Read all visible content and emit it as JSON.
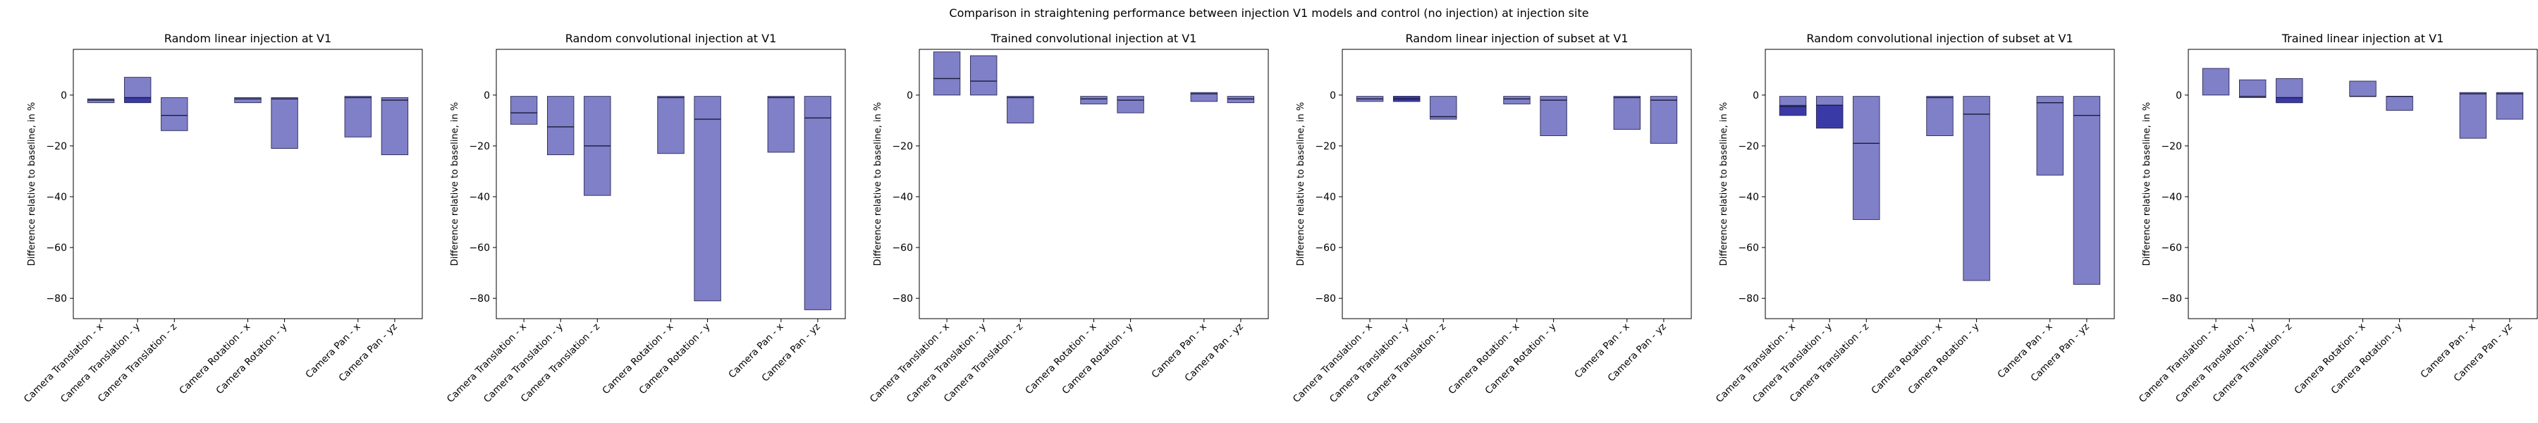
{
  "figure": {
    "suptitle": "Comparison in straightening performance between injection V1 models and control (no injection) at injection site"
  },
  "chart_data": [
    {
      "type": "bar",
      "title": "Random linear injection at V1",
      "ylabel": "Difference relative to baseline, in %",
      "ylim": [
        -88,
        18
      ],
      "yticks": [
        0,
        -20,
        -40,
        -60,
        -80
      ],
      "categories": [
        "Camera Translation - x",
        "Camera Translation - y",
        "Camera Translation - z",
        "Camera Rotation - x",
        "Camera Rotation - y",
        "Camera Pan - x",
        "Camera Pan - yz"
      ],
      "x": [
        0,
        1,
        2,
        4,
        5,
        7,
        8
      ],
      "bars": [
        {
          "category": "Camera Translation - x",
          "light": [
            -1.5,
            -3
          ],
          "dark": null,
          "median": -2
        },
        {
          "category": "Camera Translation - y",
          "light": [
            -1,
            7
          ],
          "dark": [
            -3,
            -1
          ],
          "median": -1
        },
        {
          "category": "Camera Translation - z",
          "light": [
            -14,
            -1
          ],
          "dark": null,
          "median": -8
        },
        {
          "category": "Camera Rotation - x",
          "light": [
            -1,
            -3
          ],
          "dark": null,
          "median": -1.5
        },
        {
          "category": "Camera Rotation - y",
          "light": [
            -21,
            -1
          ],
          "dark": null,
          "median": -1.5
        },
        {
          "category": "Camera Pan - x",
          "light": [
            -16.5,
            -0.5
          ],
          "dark": null,
          "median": -1
        },
        {
          "category": "Camera Pan - yz",
          "light": [
            -23.5,
            -1
          ],
          "dark": null,
          "median": -2
        }
      ]
    },
    {
      "type": "bar",
      "title": "Random convolutional injection at V1",
      "ylabel": "Difference relative to baseline, in %",
      "ylim": [
        -88,
        18
      ],
      "yticks": [
        0,
        -20,
        -40,
        -60,
        -80
      ],
      "categories": [
        "Camera Translation - x",
        "Camera Translation - y",
        "Camera Translation - z",
        "Camera Rotation - x",
        "Camera Rotation - y",
        "Camera Pan - x",
        "Camera Pan - yz"
      ],
      "x": [
        0,
        1,
        2,
        4,
        5,
        7,
        8
      ],
      "bars": [
        {
          "category": "Camera Translation - x",
          "light": [
            -11.5,
            -0.5
          ],
          "dark": null,
          "median": -7
        },
        {
          "category": "Camera Translation - y",
          "light": [
            -23.5,
            -0.5
          ],
          "dark": null,
          "median": -12.5
        },
        {
          "category": "Camera Translation - z",
          "light": [
            -39.5,
            -0.5
          ],
          "dark": null,
          "median": -20
        },
        {
          "category": "Camera Rotation - x",
          "light": [
            -23,
            -0.5
          ],
          "dark": null,
          "median": -1
        },
        {
          "category": "Camera Rotation - y",
          "light": [
            -81,
            -0.5
          ],
          "dark": null,
          "median": -9.5
        },
        {
          "category": "Camera Pan - x",
          "light": [
            -22.5,
            -0.5
          ],
          "dark": null,
          "median": -1
        },
        {
          "category": "Camera Pan - yz",
          "light": [
            -84.5,
            -0.5
          ],
          "dark": null,
          "median": -9
        }
      ]
    },
    {
      "type": "bar",
      "title": "Trained convolutional injection at V1",
      "ylabel": "Difference relative to baseline, in %",
      "ylim": [
        -88,
        18
      ],
      "yticks": [
        0,
        -20,
        -40,
        -60,
        -80
      ],
      "categories": [
        "Camera Translation - x",
        "Camera Translation - y",
        "Camera Translation - z",
        "Camera Rotation - x",
        "Camera Rotation - y",
        "Camera Pan - x",
        "Camera Pan - yz"
      ],
      "x": [
        0,
        1,
        2,
        4,
        5,
        7,
        8
      ],
      "bars": [
        {
          "category": "Camera Translation - x",
          "light": [
            0,
            17
          ],
          "dark": null,
          "median": 6.5
        },
        {
          "category": "Camera Translation - y",
          "light": [
            0,
            15.5
          ],
          "dark": null,
          "median": 5.5
        },
        {
          "category": "Camera Translation - z",
          "light": [
            -11,
            -0.5
          ],
          "dark": null,
          "median": -1
        },
        {
          "category": "Camera Rotation - x",
          "light": [
            -3.5,
            -0.5
          ],
          "dark": null,
          "median": -1.5
        },
        {
          "category": "Camera Rotation - y",
          "light": [
            -7,
            -0.5
          ],
          "dark": null,
          "median": -2
        },
        {
          "category": "Camera Pan - x",
          "light": [
            -2.5,
            1
          ],
          "dark": null,
          "median": 0.5
        },
        {
          "category": "Camera Pan - yz",
          "light": [
            -3,
            -0.5
          ],
          "dark": null,
          "median": -1.5
        }
      ]
    },
    {
      "type": "bar",
      "title": "Random linear injection of subset at V1",
      "ylabel": "Difference relative to baseline, in %",
      "ylim": [
        -88,
        18
      ],
      "yticks": [
        0,
        -20,
        -40,
        -60,
        -80
      ],
      "categories": [
        "Camera Translation - x",
        "Camera Translation - y",
        "Camera Translation - z",
        "Camera Rotation - x",
        "Camera Rotation - y",
        "Camera Pan - x",
        "Camera Pan - yz"
      ],
      "x": [
        0,
        1,
        2,
        4,
        5,
        7,
        8
      ],
      "bars": [
        {
          "category": "Camera Translation - x",
          "light": [
            -2.5,
            -0.5
          ],
          "dark": null,
          "median": -1.5
        },
        {
          "category": "Camera Translation - y",
          "light": [
            -2.5,
            -0.5
          ],
          "dark": [
            -2.5,
            -0.5
          ],
          "median": -1.5
        },
        {
          "category": "Camera Translation - z",
          "light": [
            -9.5,
            -0.5
          ],
          "dark": null,
          "median": -8.5
        },
        {
          "category": "Camera Rotation - x",
          "light": [
            -3.5,
            -0.5
          ],
          "dark": null,
          "median": -1.5
        },
        {
          "category": "Camera Rotation - y",
          "light": [
            -16,
            -0.5
          ],
          "dark": null,
          "median": -2
        },
        {
          "category": "Camera Pan - x",
          "light": [
            -13.5,
            -0.5
          ],
          "dark": null,
          "median": -1
        },
        {
          "category": "Camera Pan - yz",
          "light": [
            -19,
            -0.5
          ],
          "dark": null,
          "median": -2
        }
      ]
    },
    {
      "type": "bar",
      "title": "Random convolutional injection of subset at V1",
      "ylabel": "Difference relative to baseline, in %",
      "ylim": [
        -88,
        18
      ],
      "yticks": [
        0,
        -20,
        -40,
        -60,
        -80
      ],
      "categories": [
        "Camera Translation - x",
        "Camera Translation - y",
        "Camera Translation - z",
        "Camera Rotation - x",
        "Camera Rotation - y",
        "Camera Pan - x",
        "Camera Pan - yz"
      ],
      "x": [
        0,
        1,
        2,
        4,
        5,
        7,
        8
      ],
      "bars": [
        {
          "category": "Camera Translation - x",
          "light": [
            -8,
            -0.5
          ],
          "dark": [
            -8,
            -4
          ],
          "median": -4.5
        },
        {
          "category": "Camera Translation - y",
          "light": [
            -13,
            -0.5
          ],
          "dark": [
            -13,
            -4
          ],
          "median": -4
        },
        {
          "category": "Camera Translation - z",
          "light": [
            -49,
            -0.5
          ],
          "dark": null,
          "median": -19
        },
        {
          "category": "Camera Rotation - x",
          "light": [
            -16,
            -0.5
          ],
          "dark": null,
          "median": -1
        },
        {
          "category": "Camera Rotation - y",
          "light": [
            -73,
            -0.5
          ],
          "dark": null,
          "median": -7.5
        },
        {
          "category": "Camera Pan - x",
          "light": [
            -31.5,
            -0.5
          ],
          "dark": null,
          "median": -3
        },
        {
          "category": "Camera Pan - yz",
          "light": [
            -74.5,
            -0.5
          ],
          "dark": null,
          "median": -8
        }
      ]
    },
    {
      "type": "bar",
      "title": "Trained linear injection at V1",
      "ylabel": "Difference relative to baseline, in %",
      "ylim": [
        -88,
        18
      ],
      "yticks": [
        0,
        -20,
        -40,
        -60,
        -80
      ],
      "categories": [
        "Camera Translation - x",
        "Camera Translation - y",
        "Camera Translation - z",
        "Camera Rotation - x",
        "Camera Rotation - y",
        "Camera Pan - x",
        "Camera Pan - yz"
      ],
      "x": [
        0,
        1,
        2,
        4,
        5,
        7,
        8
      ],
      "bars": [
        {
          "category": "Camera Translation - x",
          "light": [
            0,
            10.5
          ],
          "dark": null,
          "median": null
        },
        {
          "category": "Camera Translation - y",
          "light": [
            -1,
            6
          ],
          "dark": null,
          "median": -0.5
        },
        {
          "category": "Camera Translation - z",
          "light": [
            -3,
            6.5
          ],
          "dark": [
            -3,
            -1
          ],
          "median": -1
        },
        {
          "category": "Camera Rotation - x",
          "light": [
            -0.5,
            5.5
          ],
          "dark": null,
          "median": -0.5
        },
        {
          "category": "Camera Rotation - y",
          "light": [
            -6,
            -0.5
          ],
          "dark": null,
          "median": -0.5
        },
        {
          "category": "Camera Pan - x",
          "light": [
            -17,
            1
          ],
          "dark": null,
          "median": 0.5
        },
        {
          "category": "Camera Pan - yz",
          "light": [
            -9.5,
            1
          ],
          "dark": null,
          "median": 0.5
        }
      ]
    }
  ],
  "colors": {
    "bar_fill": "#8080c8",
    "bar_fill_dark": "#3a3aa6",
    "bar_edge": "#2a2a55",
    "axis": "#000000"
  }
}
